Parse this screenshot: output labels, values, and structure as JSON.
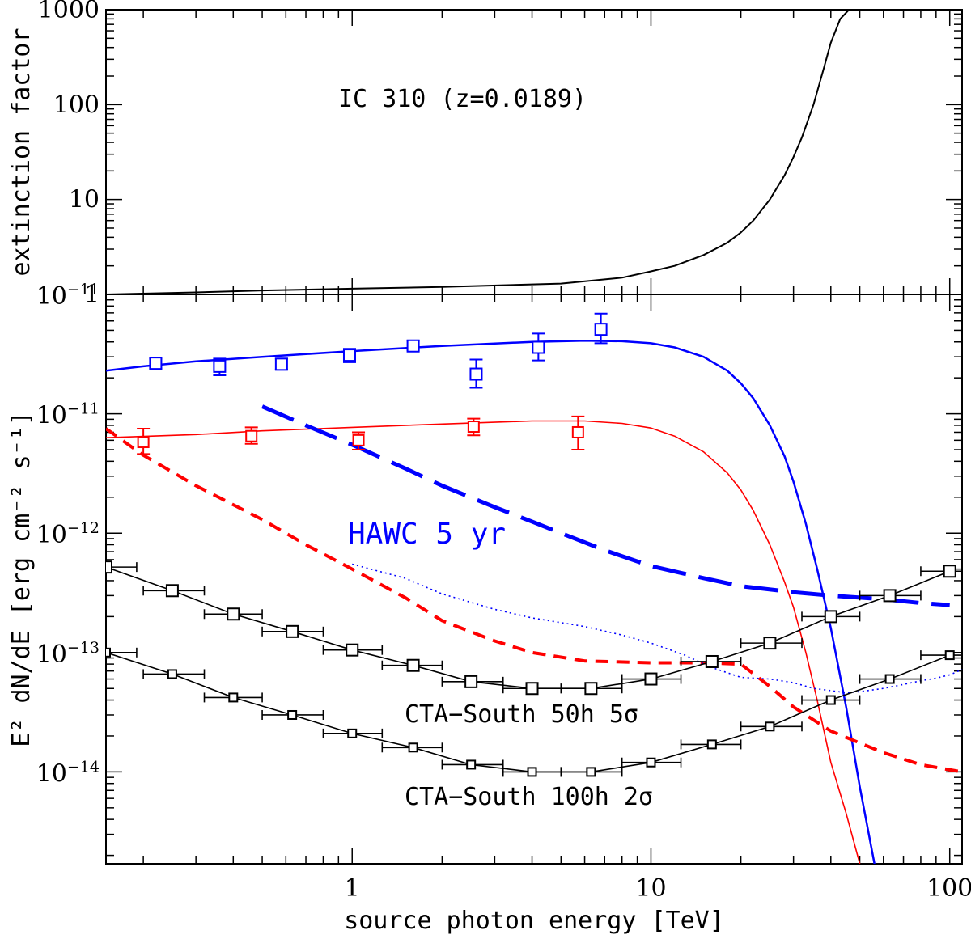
{
  "chart_data": [
    {
      "type": "line",
      "title": "IC 310 (z=0.0189)",
      "xlabel": "",
      "ylabel": "extinction factor",
      "xscale": "log",
      "yscale": "log",
      "xlim": [
        0.15,
        110
      ],
      "ylim": [
        1,
        1000
      ],
      "yticklabels": [
        {
          "value": 1,
          "label": "1"
        },
        {
          "value": 10,
          "label": "10"
        },
        {
          "value": 100,
          "label": "100"
        },
        {
          "value": 1000,
          "label": "1000"
        }
      ],
      "series": [
        {
          "name": "extinction factor",
          "color": "#000000",
          "x": [
            0.15,
            0.3,
            0.5,
            1,
            2,
            5,
            8,
            10,
            12,
            15,
            18,
            20,
            22,
            25,
            28,
            30,
            32,
            35,
            38,
            40,
            43,
            46
          ],
          "y": [
            1.0,
            1.05,
            1.1,
            1.15,
            1.2,
            1.3,
            1.5,
            1.75,
            2.0,
            2.6,
            3.5,
            4.5,
            6.0,
            10,
            18,
            28,
            45,
            100,
            250,
            450,
            800,
            1000
          ]
        }
      ]
    },
    {
      "type": "line",
      "xlabel": "source photon energy [TeV]",
      "ylabel": "E² dN/dE  [erg cm⁻² s⁻¹]",
      "xscale": "log",
      "yscale": "log",
      "xlim": [
        0.15,
        110
      ],
      "ylim": [
        1.7e-15,
        1e-10
      ],
      "xticklabels": [
        {
          "value": 1,
          "label": "1"
        },
        {
          "value": 10,
          "label": "10"
        },
        {
          "value": 100,
          "label": "100"
        }
      ],
      "yticklabels": [
        {
          "value": 1e-14,
          "base": "10",
          "exp": "−14"
        },
        {
          "value": 1e-13,
          "base": "10",
          "exp": "−13"
        },
        {
          "value": 1e-12,
          "base": "10",
          "exp": "−12"
        },
        {
          "value": 1e-11,
          "base": "10",
          "exp": "−11"
        }
      ],
      "top_left_label": {
        "base": "10",
        "exp": "−11"
      },
      "annotations": [
        {
          "text": "HAWC 5 yr",
          "color": "#0000ff"
        },
        {
          "text": "CTA−South 50h 5σ",
          "color": "#000000"
        },
        {
          "text": "CTA−South 100h 2σ",
          "color": "#000000"
        }
      ],
      "series": [
        {
          "name": "blue model",
          "color": "#0000ff",
          "style": "solid",
          "width": 2.5,
          "x": [
            0.15,
            0.2,
            0.3,
            0.5,
            1,
            2,
            4,
            6,
            8,
            10,
            12,
            15,
            18,
            20,
            22,
            25,
            28,
            30,
            33,
            36,
            40,
            45,
            50,
            56
          ],
          "y": [
            2.3e-11,
            2.5e-11,
            2.75e-11,
            3e-11,
            3.35e-11,
            3.7e-11,
            4e-11,
            4.1e-11,
            4.05e-11,
            3.9e-11,
            3.6e-11,
            3e-11,
            2.3e-11,
            1.8e-11,
            1.35e-11,
            8e-12,
            4.4e-12,
            2.7e-12,
            1.2e-12,
            5e-13,
            1.6e-13,
            3.5e-14,
            7.5e-15,
            1.7e-15
          ]
        },
        {
          "name": "red model",
          "color": "#ff0000",
          "style": "solid",
          "width": 1.6,
          "x": [
            0.15,
            0.3,
            0.5,
            1,
            2,
            4,
            6,
            8,
            10,
            12,
            15,
            18,
            20,
            22,
            25,
            28,
            30,
            33,
            36,
            40,
            45,
            50
          ],
          "y": [
            6.3e-12,
            6.7e-12,
            7.2e-12,
            7.7e-12,
            8.2e-12,
            8.7e-12,
            8.7e-12,
            8.3e-12,
            7.6e-12,
            6.5e-12,
            4.8e-12,
            3.2e-12,
            2.3e-12,
            1.55e-12,
            8e-13,
            3.9e-13,
            2.4e-13,
            1e-13,
            4e-14,
            1.2e-14,
            4.5e-15,
            1.7e-15
          ]
        },
        {
          "name": "HAWC 5 yr",
          "color": "#0000ff",
          "style": "long-dash",
          "width": 5,
          "x": [
            0.5,
            0.7,
            1,
            1.5,
            2,
            3,
            4,
            5,
            7,
            10,
            15,
            20,
            30,
            40,
            60,
            80,
            100
          ],
          "y": [
            1.15e-11,
            8e-12,
            5.5e-12,
            3.5e-12,
            2.5e-12,
            1.65e-12,
            1.25e-12,
            1e-12,
            7.2e-13,
            5.3e-13,
            4.2e-13,
            3.6e-13,
            3.2e-13,
            3e-13,
            2.8e-13,
            2.6e-13,
            2.5e-13
          ]
        },
        {
          "name": "red dashed sensitivity",
          "color": "#ff0000",
          "style": "dashed",
          "width": 4,
          "x": [
            0.15,
            0.2,
            0.3,
            0.5,
            0.7,
            1,
            1.5,
            2,
            3,
            4,
            6,
            10,
            15,
            20,
            25,
            30,
            40,
            60,
            80,
            110
          ],
          "y": [
            7.5e-12,
            4.5e-12,
            2.5e-12,
            1.3e-12,
            8e-13,
            5e-13,
            2.9e-13,
            1.85e-13,
            1.25e-13,
            1e-13,
            8.5e-14,
            8.2e-14,
            8.2e-14,
            8e-14,
            5.2e-14,
            3.5e-14,
            2.2e-14,
            1.45e-14,
            1.15e-14,
            1e-14
          ]
        },
        {
          "name": "blue dotted sensitivity",
          "color": "#0000ff",
          "style": "dotted",
          "width": 1.6,
          "x": [
            1,
            1.5,
            2,
            3,
            4,
            6,
            8,
            10,
            13,
            16,
            20,
            25,
            30,
            35,
            40,
            45,
            50,
            60,
            70,
            80,
            90,
            100,
            110
          ],
          "y": [
            5.5e-13,
            4.2e-13,
            3.1e-13,
            2.3e-13,
            1.95e-13,
            1.65e-13,
            1.4e-13,
            1.2e-13,
            9.5e-14,
            7.5e-14,
            6.2e-14,
            6e-14,
            5.6e-14,
            5e-14,
            4.8e-14,
            4.6e-14,
            4.7e-14,
            5e-14,
            5.4e-14,
            5.8e-14,
            6.1e-14,
            6.5e-14,
            7.2e-14
          ]
        }
      ],
      "error_series": [
        {
          "name": "blue data",
          "color": "#0000ff",
          "marker_size": 14,
          "points": [
            {
              "x": 0.22,
              "y": 2.65e-11,
              "ylo": 2.4e-11,
              "yhi": 2.9e-11
            },
            {
              "x": 0.36,
              "y": 2.5e-11,
              "ylo": 2.1e-11,
              "yhi": 2.9e-11
            },
            {
              "x": 0.58,
              "y": 2.6e-11,
              "ylo": 2.35e-11,
              "yhi": 2.9e-11
            },
            {
              "x": 0.98,
              "y": 3.1e-11,
              "ylo": 2.7e-11,
              "yhi": 3.5e-11
            },
            {
              "x": 1.6,
              "y": 3.7e-11,
              "ylo": 3.4e-11,
              "yhi": 4.1e-11
            },
            {
              "x": 2.6,
              "y": 2.15e-11,
              "ylo": 1.65e-11,
              "yhi": 2.85e-11
            },
            {
              "x": 4.2,
              "y": 3.6e-11,
              "ylo": 2.8e-11,
              "yhi": 4.7e-11
            },
            {
              "x": 6.8,
              "y": 5.1e-11,
              "ylo": 3.9e-11,
              "yhi": 6.9e-11
            }
          ]
        },
        {
          "name": "red data",
          "color": "#ff0000",
          "marker_size": 13,
          "points": [
            {
              "x": 0.2,
              "y": 5.8e-12,
              "ylo": 4.6e-12,
              "yhi": 7.5e-12
            },
            {
              "x": 0.46,
              "y": 6.5e-12,
              "ylo": 5.6e-12,
              "yhi": 7.7e-12
            },
            {
              "x": 1.05,
              "y": 6e-12,
              "ylo": 5e-12,
              "yhi": 7e-12
            },
            {
              "x": 2.55,
              "y": 7.8e-12,
              "ylo": 6.6e-12,
              "yhi": 9.1e-12
            },
            {
              "x": 5.7,
              "y": 7e-12,
              "ylo": 5e-12,
              "yhi": 9.5e-12
            }
          ]
        },
        {
          "name": "CTA−South 50h 5σ",
          "color": "#000000",
          "marker_size": 14,
          "points": [
            {
              "x": 0.15,
              "y": 5.2e-13,
              "xlo": 0.12,
              "xhi": 0.19
            },
            {
              "x": 0.25,
              "y": 3.3e-13,
              "xlo": 0.2,
              "xhi": 0.32
            },
            {
              "x": 0.4,
              "y": 2.1e-13,
              "xlo": 0.32,
              "xhi": 0.5
            },
            {
              "x": 0.63,
              "y": 1.5e-13,
              "xlo": 0.5,
              "xhi": 0.8
            },
            {
              "x": 1.0,
              "y": 1.05e-13,
              "xlo": 0.8,
              "xhi": 1.26
            },
            {
              "x": 1.6,
              "y": 7.8e-14,
              "xlo": 1.26,
              "xhi": 2.0
            },
            {
              "x": 2.5,
              "y": 5.7e-14,
              "xlo": 2.0,
              "xhi": 3.2
            },
            {
              "x": 4.0,
              "y": 5e-14,
              "xlo": 3.2,
              "xhi": 5.0
            },
            {
              "x": 6.3,
              "y": 5e-14,
              "xlo": 5.0,
              "xhi": 8.0
            },
            {
              "x": 10.0,
              "y": 6e-14,
              "xlo": 8.0,
              "xhi": 12.6
            },
            {
              "x": 16.0,
              "y": 8.4e-14,
              "xlo": 12.6,
              "xhi": 20.0
            },
            {
              "x": 25.0,
              "y": 1.2e-13,
              "xlo": 20.0,
              "xhi": 32.0
            },
            {
              "x": 40.0,
              "y": 2e-13,
              "xlo": 32.0,
              "xhi": 50.0
            },
            {
              "x": 63.0,
              "y": 3e-13,
              "xlo": 50.0,
              "xhi": 80.0
            },
            {
              "x": 100.0,
              "y": 4.8e-13,
              "xlo": 80.0,
              "xhi": 126.0
            }
          ]
        },
        {
          "name": "CTA−South 100h 2σ",
          "color": "#000000",
          "marker_size": 10,
          "points": [
            {
              "x": 0.15,
              "y": 1e-13,
              "xlo": 0.12,
              "xhi": 0.19
            },
            {
              "x": 0.25,
              "y": 6.6e-14,
              "xlo": 0.2,
              "xhi": 0.32
            },
            {
              "x": 0.4,
              "y": 4.2e-14,
              "xlo": 0.32,
              "xhi": 0.5
            },
            {
              "x": 0.63,
              "y": 3e-14,
              "xlo": 0.5,
              "xhi": 0.8
            },
            {
              "x": 1.0,
              "y": 2.1e-14,
              "xlo": 0.8,
              "xhi": 1.26
            },
            {
              "x": 1.6,
              "y": 1.6e-14,
              "xlo": 1.26,
              "xhi": 2.0
            },
            {
              "x": 2.5,
              "y": 1.15e-14,
              "xlo": 2.0,
              "xhi": 3.2
            },
            {
              "x": 4.0,
              "y": 1e-14,
              "xlo": 3.2,
              "xhi": 5.0
            },
            {
              "x": 6.3,
              "y": 1e-14,
              "xlo": 5.0,
              "xhi": 8.0
            },
            {
              "x": 10.0,
              "y": 1.2e-14,
              "xlo": 8.0,
              "xhi": 12.6
            },
            {
              "x": 16.0,
              "y": 1.7e-14,
              "xlo": 12.6,
              "xhi": 20.0
            },
            {
              "x": 25.0,
              "y": 2.4e-14,
              "xlo": 20.0,
              "xhi": 32.0
            },
            {
              "x": 40.0,
              "y": 4e-14,
              "xlo": 32.0,
              "xhi": 50.0
            },
            {
              "x": 63.0,
              "y": 6e-14,
              "xlo": 50.0,
              "xhi": 80.0
            },
            {
              "x": 100.0,
              "y": 9.5e-14,
              "xlo": 80.0,
              "xhi": 126.0
            }
          ]
        }
      ]
    }
  ]
}
